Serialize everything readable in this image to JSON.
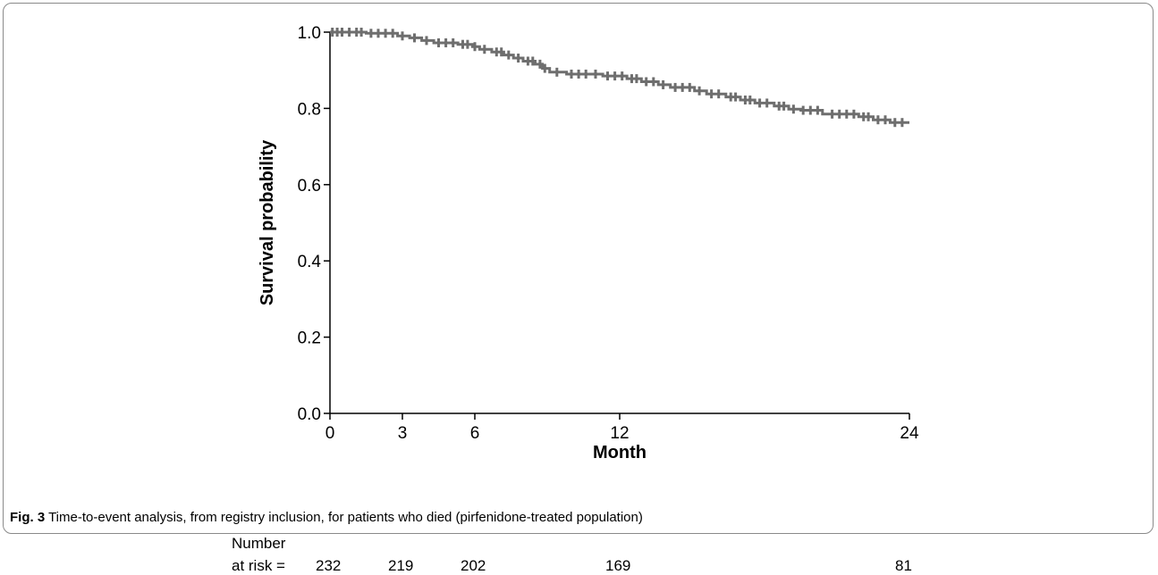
{
  "figure": {
    "label": "Fig. 3",
    "caption": "Time-to-event analysis, from registry inclusion, for patients who died (pirfenidone-treated population)"
  },
  "risk_table": {
    "header_line1": "Number",
    "header_line2": "at risk =",
    "counts": [
      {
        "x": 0,
        "label": "232"
      },
      {
        "x": 3,
        "label": "219"
      },
      {
        "x": 6,
        "label": "202"
      },
      {
        "x": 12,
        "label": "169"
      },
      {
        "x": 24,
        "label": "81"
      }
    ]
  },
  "chart_data": {
    "type": "line",
    "subtype": "kaplan-meier step curve with censor marks",
    "xlabel": "Month",
    "ylabel": "Survival probability",
    "xlim": [
      0,
      24
    ],
    "ylim": [
      0,
      1.0
    ],
    "xticks": [
      0,
      3,
      6,
      12,
      24
    ],
    "yticks": [
      0.0,
      0.2,
      0.4,
      0.6,
      0.8,
      1.0
    ],
    "ytick_labels": [
      "0.0",
      "0.2",
      "0.4",
      "0.6",
      "0.8",
      "1.0"
    ],
    "grid": false,
    "line_color": "#6e6e6e",
    "series": [
      {
        "points": [
          [
            0,
            1.0
          ],
          [
            1.5,
            1.0
          ],
          [
            1.5,
            0.997
          ],
          [
            2.8,
            0.997
          ],
          [
            2.8,
            0.99
          ],
          [
            3.3,
            0.99
          ],
          [
            3.3,
            0.985
          ],
          [
            3.8,
            0.985
          ],
          [
            3.8,
            0.978
          ],
          [
            4.3,
            0.978
          ],
          [
            4.3,
            0.972
          ],
          [
            5.3,
            0.972
          ],
          [
            5.3,
            0.968
          ],
          [
            5.9,
            0.968
          ],
          [
            5.9,
            0.962
          ],
          [
            6.2,
            0.962
          ],
          [
            6.2,
            0.955
          ],
          [
            6.7,
            0.955
          ],
          [
            6.7,
            0.948
          ],
          [
            7.2,
            0.948
          ],
          [
            7.2,
            0.94
          ],
          [
            7.6,
            0.94
          ],
          [
            7.6,
            0.932
          ],
          [
            8.0,
            0.932
          ],
          [
            8.0,
            0.924
          ],
          [
            8.5,
            0.924
          ],
          [
            8.5,
            0.916
          ],
          [
            8.8,
            0.916
          ],
          [
            8.8,
            0.905
          ],
          [
            9.1,
            0.905
          ],
          [
            9.1,
            0.895
          ],
          [
            9.8,
            0.895
          ],
          [
            9.8,
            0.89
          ],
          [
            11.3,
            0.89
          ],
          [
            11.3,
            0.885
          ],
          [
            12.3,
            0.885
          ],
          [
            12.3,
            0.878
          ],
          [
            12.9,
            0.878
          ],
          [
            12.9,
            0.87
          ],
          [
            13.6,
            0.87
          ],
          [
            13.6,
            0.862
          ],
          [
            14.1,
            0.862
          ],
          [
            14.1,
            0.855
          ],
          [
            15.1,
            0.855
          ],
          [
            15.1,
            0.846
          ],
          [
            15.6,
            0.846
          ],
          [
            15.6,
            0.838
          ],
          [
            16.4,
            0.838
          ],
          [
            16.4,
            0.83
          ],
          [
            17.0,
            0.83
          ],
          [
            17.0,
            0.822
          ],
          [
            17.6,
            0.822
          ],
          [
            17.6,
            0.814
          ],
          [
            18.4,
            0.814
          ],
          [
            18.4,
            0.806
          ],
          [
            19.0,
            0.806
          ],
          [
            19.0,
            0.798
          ],
          [
            19.5,
            0.798
          ],
          [
            19.5,
            0.795
          ],
          [
            20.4,
            0.795
          ],
          [
            20.4,
            0.785
          ],
          [
            21.9,
            0.785
          ],
          [
            21.9,
            0.778
          ],
          [
            22.5,
            0.778
          ],
          [
            22.5,
            0.77
          ],
          [
            23.2,
            0.77
          ],
          [
            23.2,
            0.763
          ],
          [
            24.0,
            0.763
          ]
        ]
      }
    ],
    "censor_marks": [
      [
        0.1,
        1.0
      ],
      [
        0.3,
        1.0
      ],
      [
        0.5,
        1.0
      ],
      [
        0.8,
        1.0
      ],
      [
        1.1,
        1.0
      ],
      [
        1.3,
        1.0
      ],
      [
        1.7,
        0.997
      ],
      [
        2.0,
        0.997
      ],
      [
        2.3,
        0.997
      ],
      [
        2.6,
        0.997
      ],
      [
        3.0,
        0.99
      ],
      [
        3.5,
        0.985
      ],
      [
        4.0,
        0.978
      ],
      [
        4.5,
        0.972
      ],
      [
        4.8,
        0.972
      ],
      [
        5.1,
        0.972
      ],
      [
        5.5,
        0.968
      ],
      [
        5.7,
        0.968
      ],
      [
        6.0,
        0.962
      ],
      [
        6.4,
        0.955
      ],
      [
        6.9,
        0.948
      ],
      [
        7.1,
        0.948
      ],
      [
        7.4,
        0.94
      ],
      [
        7.8,
        0.932
      ],
      [
        8.2,
        0.924
      ],
      [
        8.4,
        0.924
      ],
      [
        8.7,
        0.916
      ],
      [
        8.9,
        0.905
      ],
      [
        9.4,
        0.895
      ],
      [
        10.0,
        0.89
      ],
      [
        10.3,
        0.89
      ],
      [
        10.6,
        0.89
      ],
      [
        11.0,
        0.89
      ],
      [
        11.5,
        0.885
      ],
      [
        11.8,
        0.885
      ],
      [
        12.1,
        0.885
      ],
      [
        12.5,
        0.878
      ],
      [
        12.7,
        0.878
      ],
      [
        13.1,
        0.87
      ],
      [
        13.4,
        0.87
      ],
      [
        13.8,
        0.862
      ],
      [
        14.3,
        0.855
      ],
      [
        14.6,
        0.855
      ],
      [
        14.9,
        0.855
      ],
      [
        15.3,
        0.846
      ],
      [
        15.8,
        0.838
      ],
      [
        16.1,
        0.838
      ],
      [
        16.6,
        0.83
      ],
      [
        16.8,
        0.83
      ],
      [
        17.2,
        0.822
      ],
      [
        17.4,
        0.822
      ],
      [
        17.8,
        0.814
      ],
      [
        18.1,
        0.814
      ],
      [
        18.6,
        0.806
      ],
      [
        18.8,
        0.806
      ],
      [
        19.2,
        0.798
      ],
      [
        19.6,
        0.795
      ],
      [
        19.9,
        0.795
      ],
      [
        20.2,
        0.795
      ],
      [
        20.8,
        0.785
      ],
      [
        21.1,
        0.785
      ],
      [
        21.4,
        0.785
      ],
      [
        21.7,
        0.785
      ],
      [
        22.1,
        0.778
      ],
      [
        22.3,
        0.778
      ],
      [
        22.7,
        0.77
      ],
      [
        23.0,
        0.77
      ],
      [
        23.4,
        0.763
      ],
      [
        23.7,
        0.763
      ]
    ]
  }
}
